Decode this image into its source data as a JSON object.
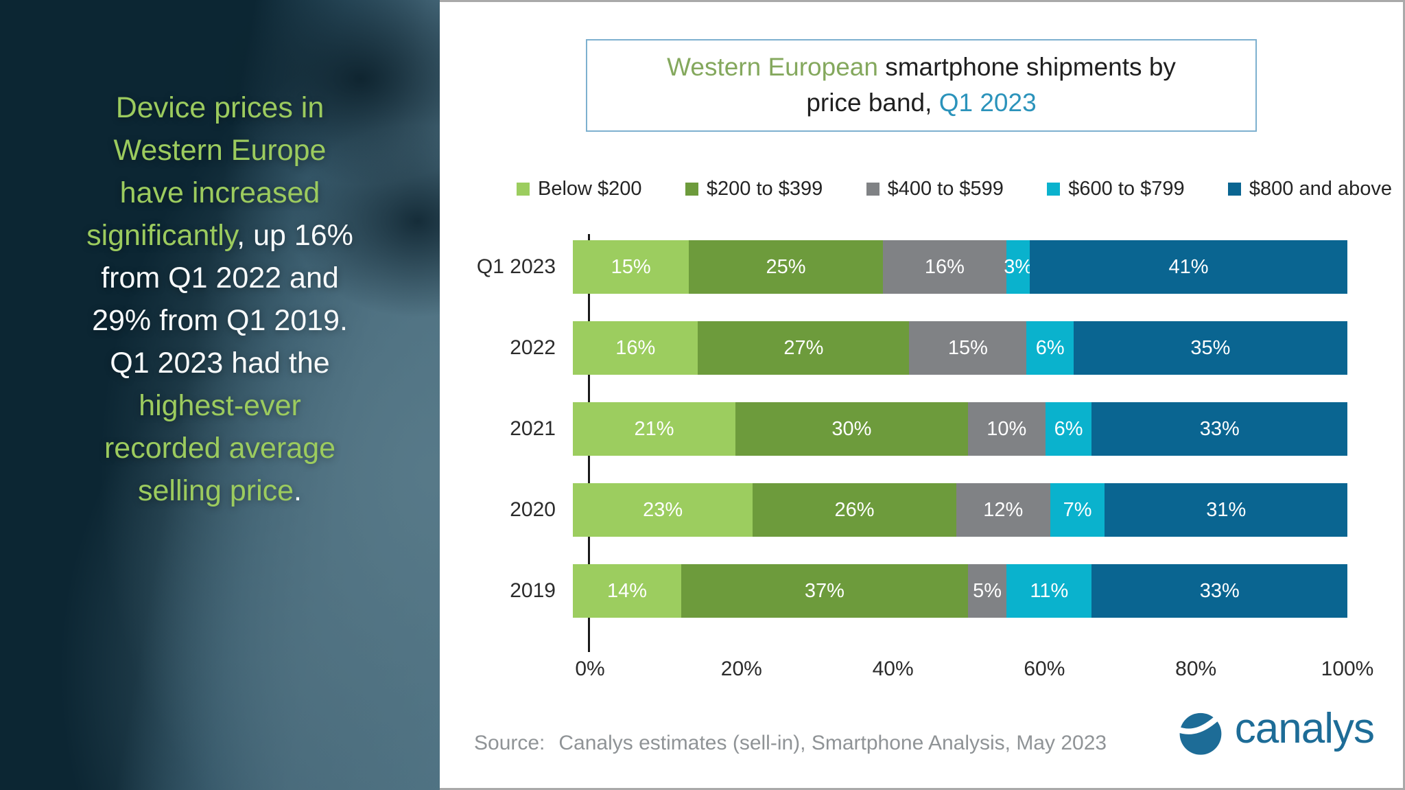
{
  "left_panel": {
    "quote_lines": [
      [
        {
          "text": "Device prices in",
          "style": "green"
        }
      ],
      [
        {
          "text": "Western Europe",
          "style": "green"
        }
      ],
      [
        {
          "text": "have increased",
          "style": "green"
        }
      ],
      [
        {
          "text": "significantly",
          "style": "green"
        },
        {
          "text": ", up 16%",
          "style": "white"
        }
      ],
      [
        {
          "text": "from Q1 2022 and",
          "style": "white"
        }
      ],
      [
        {
          "text": "29% from Q1 2019.",
          "style": "white"
        }
      ],
      [
        {
          "text": "Q1 2023 had the",
          "style": "white"
        }
      ],
      [
        {
          "text": "highest-ever",
          "style": "green"
        }
      ],
      [
        {
          "text": "recorded average",
          "style": "green"
        }
      ],
      [
        {
          "text": "selling price",
          "style": "green"
        },
        {
          "text": ".",
          "style": "white"
        }
      ]
    ]
  },
  "title": {
    "line1_green": "Western European",
    "line1_rest": " smartphone shipments by",
    "line2_prefix": "price band, ",
    "line2_accent": "Q1 2023"
  },
  "chart_data": {
    "type": "bar",
    "orientation": "horizontal",
    "stacked": true,
    "title": "Western European smartphone shipments by price band, Q1 2023",
    "categories": [
      "Q1 2023",
      "2022",
      "2021",
      "2020",
      "2019"
    ],
    "series": [
      {
        "name": "Below $200",
        "color": "#9ccd5f",
        "values": [
          15,
          16,
          21,
          23,
          14
        ]
      },
      {
        "name": "$200 to $399",
        "color": "#6d9b3c",
        "values": [
          25,
          27,
          30,
          26,
          37
        ]
      },
      {
        "name": "$400 to $599",
        "color": "#808285",
        "values": [
          16,
          15,
          10,
          12,
          5
        ]
      },
      {
        "name": "$600 to $799",
        "color": "#0ab2cd",
        "values": [
          3,
          6,
          6,
          7,
          11
        ]
      },
      {
        "name": "$800 and above",
        "color": "#0a6591",
        "values": [
          41,
          35,
          33,
          31,
          33
        ]
      }
    ],
    "x_ticks": [
      "0%",
      "20%",
      "40%",
      "60%",
      "80%",
      "100%"
    ],
    "xlim": [
      0,
      100
    ],
    "value_suffix": "%",
    "legend_position": "top",
    "grid": false
  },
  "source": {
    "label": "Source:",
    "text": "Canalys estimates (sell-in), Smartphone Analysis, May 2023"
  },
  "logo": {
    "wordmark": "canalys",
    "color": "#1d6c97"
  },
  "accent_colors": {
    "quote_green": "#9ccb5e",
    "quote_white": "#ffffff",
    "title_green": "#84a85d",
    "title_teal": "#2b93bb",
    "title_border": "#7db0cf"
  }
}
